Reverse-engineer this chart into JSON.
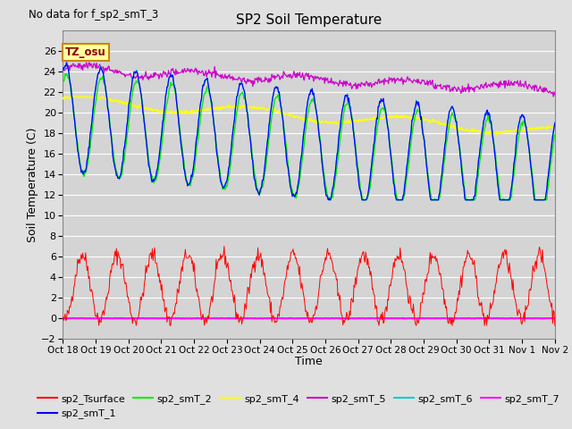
{
  "title": "SP2 Soil Temperature",
  "no_data_text": "No data for f_sp2_smT_3",
  "tz_label": "TZ_osu",
  "xlabel": "Time",
  "ylabel": "Soil Temperature (C)",
  "ylim": [
    -2,
    28
  ],
  "yticks": [
    -2,
    0,
    2,
    4,
    6,
    8,
    10,
    12,
    14,
    16,
    18,
    20,
    22,
    24,
    26
  ],
  "bg_color": "#e0e0e0",
  "plot_bg_color": "#d4d4d4",
  "series_colors": {
    "sp2_Tsurface": "#ff0000",
    "sp2_smT_1": "#0000ff",
    "sp2_smT_2": "#00ee00",
    "sp2_smT_4": "#ffff00",
    "sp2_smT_5": "#cc00cc",
    "sp2_smT_6": "#00cccc",
    "sp2_smT_7": "#ff00ff"
  },
  "x_tick_labels": [
    "Oct 18",
    "Oct 19",
    "Oct 20",
    "Oct 21",
    "Oct 22",
    "Oct 23",
    "Oct 24",
    "Oct 25",
    "Oct 26",
    "Oct 27",
    "Oct 28",
    "Oct 29",
    "Oct 30",
    "Oct 31",
    "Nov 1",
    "Nov 2"
  ],
  "n_points": 672
}
